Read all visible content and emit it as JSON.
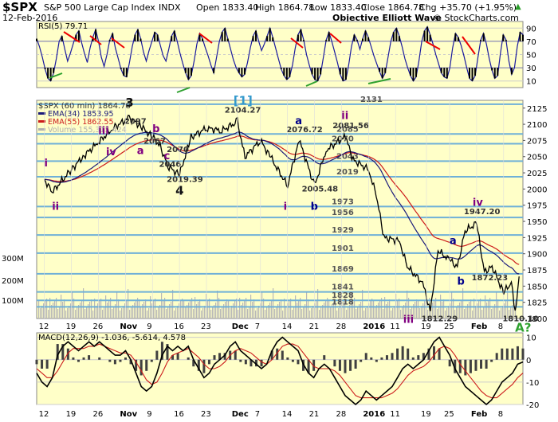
{
  "header": {
    "symbol": "$SPX",
    "name": "S&P 500 Large Cap Index",
    "exchange": "INDX",
    "date": "12-Feb-2016",
    "open": "Open 1833.40",
    "high": "High 1864.78",
    "low": "Low 1833.40",
    "close": "Close 1864.78",
    "chg": "Chg +35.70 (+1.95%)",
    "chg_icon": "up-triangle-icon",
    "watermark_left": "Objective Elliott Wave",
    "watermark_right": "© StockCharts.com"
  },
  "colors": {
    "panel_bg": "#ffffc8",
    "rsi_line": "#1a1a9e",
    "ema34": "#1a1a7a",
    "ema55": "#cc1b1b",
    "price": "#000000",
    "support": "#6fb0d8",
    "wave_black": "#111111",
    "wave_purple": "#800080",
    "wave_blue": "#00008b",
    "wave_green": "#2ea12e",
    "macd_hist": "#404040"
  },
  "chart_data": [
    {
      "type": "line",
      "title": "RSI(5) 79.71",
      "ylim": [
        0,
        100
      ],
      "yticks": [
        10,
        30,
        50,
        70,
        90
      ],
      "values": [
        74,
        62,
        46,
        28,
        14,
        10,
        22,
        44,
        70,
        78,
        58,
        40,
        52,
        66,
        80,
        86,
        68,
        52,
        38,
        60,
        76,
        88,
        70,
        46,
        32,
        50,
        72,
        82,
        60,
        44,
        28,
        18,
        16,
        38,
        62,
        80,
        88,
        74,
        54,
        40,
        56,
        70,
        84,
        80,
        64,
        48,
        40,
        58,
        78,
        86,
        70,
        52,
        36,
        22,
        12,
        18,
        40,
        66,
        82,
        74,
        60,
        48,
        34,
        22,
        46,
        70,
        84,
        90,
        74,
        58,
        42,
        30,
        22,
        16,
        20,
        38,
        60,
        78,
        86,
        70,
        56,
        66,
        78,
        90,
        76,
        60,
        44,
        28,
        18,
        12,
        16,
        34,
        60,
        80,
        88,
        72,
        50,
        34,
        20,
        12,
        10,
        20,
        46,
        72,
        84,
        70,
        54,
        38,
        20,
        10,
        12,
        34,
        62,
        80,
        72,
        58,
        74,
        86,
        76,
        62,
        48,
        36,
        24,
        14,
        22,
        46,
        70,
        84,
        90,
        78,
        62,
        44,
        30,
        18,
        10,
        16,
        40,
        70,
        86,
        92,
        80,
        66,
        50,
        36,
        22,
        16,
        14,
        30,
        60,
        82,
        76,
        64,
        48,
        30,
        14,
        10,
        18,
        46,
        72,
        82,
        66,
        44,
        26,
        14,
        18,
        52,
        80,
        72,
        40,
        20,
        30,
        62,
        84,
        80
      ]
    },
    {
      "type": "line",
      "title": "$SPX (60 min) 1864.78",
      "xlabel": "",
      "ylabel": "",
      "ylim": [
        1800,
        2137
      ],
      "yticks": [
        1800,
        1825,
        1850,
        1875,
        1900,
        1925,
        1950,
        1975,
        2000,
        2025,
        2050,
        2075,
        2100,
        2125
      ],
      "x_dates": [
        "Oct 12",
        "Oct 19",
        "Oct 26",
        "Nov 2",
        "Nov 9",
        "Nov 16",
        "Nov 23",
        "Dec 1",
        "Dec 7",
        "Dec 14",
        "Dec 21",
        "Dec 28",
        "Jan 4",
        "Jan 11",
        "Jan 19",
        "Jan 25",
        "Feb 1",
        "Feb 8"
      ],
      "x_tick_labels": [
        "12",
        "19",
        "26",
        "Nov",
        "9",
        "16",
        "23",
        "Dec",
        "7",
        "14",
        "21",
        "28",
        "2016",
        "11",
        "19",
        "25",
        "Feb",
        "8"
      ],
      "price_knots": [
        {
          "x": "Oct 12",
          "v": 2015
        },
        {
          "x": "Oct 14",
          "v": 1995
        },
        {
          "x": "Oct 19",
          "v": 2030
        },
        {
          "x": "Oct 22",
          "v": 2050
        },
        {
          "x": "Oct 26",
          "v": 2072
        },
        {
          "x": "Oct 30",
          "v": 2095
        },
        {
          "x": "Nov 3",
          "v": 2110
        },
        {
          "x": "Nov 6",
          "v": 2097
        },
        {
          "x": "Nov 9",
          "v": 2080
        },
        {
          "x": "Nov 11",
          "v": 2067
        },
        {
          "x": "Nov 13",
          "v": 2035
        },
        {
          "x": "Nov 16",
          "v": 2022
        },
        {
          "x": "Nov 19",
          "v": 2080
        },
        {
          "x": "Nov 23",
          "v": 2094
        },
        {
          "x": "Nov 27",
          "v": 2090
        },
        {
          "x": "Dec 1",
          "v": 2104
        },
        {
          "x": "Dec 3",
          "v": 2050
        },
        {
          "x": "Dec 7",
          "v": 2075
        },
        {
          "x": "Dec 10",
          "v": 2045
        },
        {
          "x": "Dec 14",
          "v": 2005
        },
        {
          "x": "Dec 17",
          "v": 2076
        },
        {
          "x": "Dec 21",
          "v": 2005
        },
        {
          "x": "Dec 24",
          "v": 2060
        },
        {
          "x": "Dec 29",
          "v": 2081
        },
        {
          "x": "Dec 31",
          "v": 2045
        },
        {
          "x": "Jan 4",
          "v": 2030
        },
        {
          "x": "Jan 6",
          "v": 1990
        },
        {
          "x": "Jan 8",
          "v": 1925
        },
        {
          "x": "Jan 12",
          "v": 1920
        },
        {
          "x": "Jan 14",
          "v": 1880
        },
        {
          "x": "Jan 18",
          "v": 1855
        },
        {
          "x": "Jan 20",
          "v": 1812
        },
        {
          "x": "Jan 22",
          "v": 1905
        },
        {
          "x": "Jan 25",
          "v": 1890
        },
        {
          "x": "Jan 27",
          "v": 1880
        },
        {
          "x": "Jan 29",
          "v": 1935
        },
        {
          "x": "Feb 1",
          "v": 1947
        },
        {
          "x": "Feb 3",
          "v": 1872
        },
        {
          "x": "Feb 5",
          "v": 1880
        },
        {
          "x": "Feb 8",
          "v": 1840
        },
        {
          "x": "Feb 10",
          "v": 1855
        },
        {
          "x": "Feb 11",
          "v": 1810
        },
        {
          "x": "Feb 12",
          "v": 1865
        }
      ],
      "series": [
        {
          "name": "EMA(34) 1853.95",
          "color": "#1a1a7a"
        },
        {
          "name": "EMA(55) 1862.55",
          "color": "#cc1b1b"
        },
        {
          "name": "Volume 155,315,424",
          "color": "#b0b0b0"
        }
      ],
      "volume_labels": [
        "300M",
        "200M",
        "100M"
      ],
      "support_levels": [
        {
          "v": 2131,
          "label": "2131"
        },
        {
          "v": 2085,
          "label": "2085"
        },
        {
          "v": 2070,
          "label": "2070"
        },
        {
          "v": 2043,
          "label": "2043"
        },
        {
          "v": 2019,
          "label": "2019"
        },
        {
          "v": 1973,
          "label": "1973"
        },
        {
          "v": 1956,
          "label": "1956"
        },
        {
          "v": 1929,
          "label": "1929"
        },
        {
          "v": 1901,
          "label": "1901"
        },
        {
          "v": 1869,
          "label": "1869"
        },
        {
          "v": 1841,
          "label": "1841"
        },
        {
          "v": 1828,
          "label": "1828"
        },
        {
          "v": 1818,
          "label": "1818"
        }
      ],
      "annotations": [
        {
          "text": "2097",
          "x": "Nov 5",
          "v": 2101
        },
        {
          "text": "2067",
          "x": "Nov 10",
          "v": 2070
        },
        {
          "text": "2070",
          "x": "Nov 16",
          "v": 2057
        },
        {
          "text": "2046",
          "x": "Nov 14",
          "v": 2034
        },
        {
          "text": "2019.39",
          "x": "Nov 16",
          "v": 2011
        },
        {
          "text": "2104.27",
          "x": "Dec 1",
          "v": 2118
        },
        {
          "text": "2076.72",
          "x": "Dec 17",
          "v": 2088
        },
        {
          "text": "2081.56",
          "x": "Dec 29",
          "v": 2094
        },
        {
          "text": "2005.48",
          "x": "Dec 21",
          "v": 1996
        },
        {
          "text": "1947.20",
          "x": "Feb 1",
          "v": 1961
        },
        {
          "text": "1872.23",
          "x": "Feb 3",
          "v": 1859
        },
        {
          "text": "1812.29",
          "x": "Jan 21",
          "v": 1796
        },
        {
          "text": "1810.10",
          "x": "Feb 11",
          "v": 1796
        }
      ],
      "wave_labels": [
        {
          "text": "i",
          "x": "Oct 13",
          "v": 2035,
          "color": "#800080"
        },
        {
          "text": "ii",
          "x": "Oct 15",
          "v": 1968,
          "color": "#800080"
        },
        {
          "text": "iii",
          "x": "Oct 27",
          "v": 2085,
          "color": "#800080"
        },
        {
          "text": "iv",
          "x": "Oct 29",
          "v": 2052,
          "color": "#800080"
        },
        {
          "text": "3",
          "x": "Nov 3",
          "v": 2127,
          "color": "#111111"
        },
        {
          "text": "b",
          "x": "Nov 10",
          "v": 2088,
          "color": "#800080"
        },
        {
          "text": "a",
          "x": "Nov 6",
          "v": 2054,
          "color": "#800080"
        },
        {
          "text": "c",
          "x": "Nov 13",
          "v": 2046,
          "color": "#800080"
        },
        {
          "text": "4",
          "x": "Nov 16",
          "v": 1991,
          "color": "#111111"
        },
        {
          "text": "[1]",
          "x": "Dec 1",
          "v": 2130,
          "color": "#3399cc"
        },
        {
          "text": "a",
          "x": "Dec 17",
          "v": 2100,
          "color": "#00008b"
        },
        {
          "text": "ii",
          "x": "Dec 29",
          "v": 2108,
          "color": "#800080"
        },
        {
          "text": "i",
          "x": "Dec 14",
          "v": 1968,
          "color": "#800080"
        },
        {
          "text": "b",
          "x": "Dec 21",
          "v": 1968,
          "color": "#00008b"
        },
        {
          "text": "iii",
          "x": "Jan 14",
          "v": 1793,
          "color": "#800080"
        },
        {
          "text": "a",
          "x": "Jan 26",
          "v": 1915,
          "color": "#00008b"
        },
        {
          "text": "iv",
          "x": "Feb 1",
          "v": 1974,
          "color": "#800080"
        },
        {
          "text": "b",
          "x": "Jan 28",
          "v": 1852,
          "color": "#00008b"
        },
        {
          "text": "A?",
          "x": "Feb 12",
          "v": 1780,
          "color": "#2ea12e"
        }
      ]
    },
    {
      "type": "line",
      "title": "MACD(12,26,9) -1.036, -5.614, 4.578",
      "ylim": [
        -20,
        12
      ],
      "yticks": [
        -20,
        -10,
        0,
        10
      ],
      "series": [
        {
          "name": "MACD",
          "values": [
            -6,
            -10,
            -12,
            -8,
            2,
            6,
            8,
            6,
            4,
            6,
            8,
            6,
            8,
            6,
            4,
            2,
            2,
            4,
            0,
            -6,
            -12,
            -14,
            -12,
            -6,
            2,
            6,
            4,
            6,
            4,
            6,
            0,
            -4,
            -8,
            -6,
            -2,
            0,
            2,
            6,
            8,
            4,
            2,
            0,
            -2,
            -4,
            -2,
            4,
            8,
            10,
            8,
            6,
            4,
            -2,
            -6,
            -8,
            -4,
            -2,
            -4,
            -8,
            -12,
            -16,
            -18,
            -20,
            -18,
            -14,
            -16,
            -18,
            -16,
            -14,
            -12,
            -8,
            -4,
            -2,
            -4,
            -2,
            0,
            4,
            8,
            10,
            6,
            2,
            -4,
            -8,
            -12,
            -14,
            -16,
            -18,
            -20,
            -18,
            -14,
            -10,
            -8,
            -6,
            -2,
            -1
          ]
        },
        {
          "name": "Signal",
          "values": [
            -4,
            -6,
            -8,
            -8,
            -5,
            -1,
            3,
            5,
            5,
            5,
            6,
            6,
            7,
            6,
            5,
            4,
            3,
            3,
            2,
            -1,
            -5,
            -9,
            -11,
            -10,
            -6,
            -1,
            2,
            3,
            4,
            5,
            3,
            1,
            -2,
            -4,
            -4,
            -3,
            -1,
            2,
            4,
            5,
            4,
            3,
            1,
            -1,
            -2,
            0,
            3,
            6,
            7,
            7,
            6,
            3,
            0,
            -3,
            -4,
            -4,
            -4,
            -5,
            -7,
            -10,
            -13,
            -16,
            -17,
            -17,
            -17,
            -17,
            -17,
            -16,
            -15,
            -13,
            -10,
            -7,
            -5,
            -4,
            -3,
            -1,
            2,
            5,
            6,
            5,
            2,
            -2,
            -5,
            -8,
            -11,
            -14,
            -16,
            -17,
            -17,
            -15,
            -13,
            -11,
            -8,
            -6
          ]
        }
      ]
    }
  ]
}
